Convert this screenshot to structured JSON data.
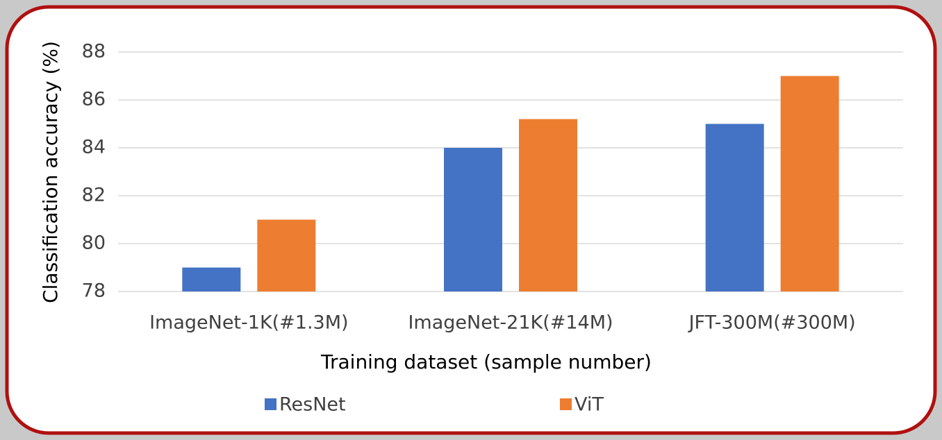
{
  "chart_data": {
    "type": "bar",
    "categories": [
      "ImageNet-1K(#1.3M)",
      "ImageNet-21K(#14M)",
      "JFT-300M(#300M)"
    ],
    "series": [
      {
        "name": "ResNet",
        "color": "#4472c4",
        "values": [
          79,
          84,
          85
        ]
      },
      {
        "name": "ViT",
        "color": "#ed7d31",
        "values": [
          81,
          85.2,
          87
        ]
      }
    ],
    "x_label": "Training dataset (sample number)",
    "y_label": "Classification accuracy (%)",
    "ylim": [
      78,
      88
    ],
    "yticks": [
      78,
      80,
      82,
      84,
      86,
      88
    ],
    "grid": true,
    "legend": "bottom"
  }
}
